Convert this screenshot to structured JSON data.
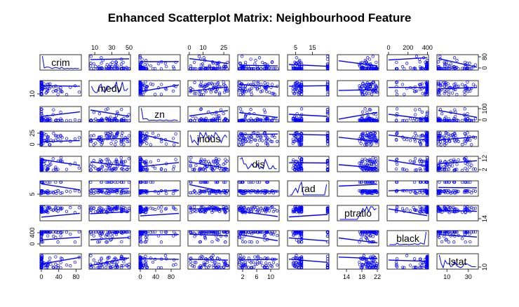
{
  "chart_data": {
    "type": "scatter",
    "title": "Enhanced Scatterplot Matrix: Neighbourhood Feature",
    "variables": [
      {
        "name": "crim",
        "ticks": [
          0,
          40,
          80
        ],
        "range": [
          0,
          89
        ]
      },
      {
        "name": "medv",
        "ticks": [
          10,
          30,
          50
        ],
        "range": [
          5,
          50
        ]
      },
      {
        "name": "zn",
        "ticks": [
          0,
          40,
          80
        ],
        "range": [
          0,
          100
        ]
      },
      {
        "name": "indus",
        "ticks": [
          0,
          10,
          25
        ],
        "range": [
          0,
          28
        ]
      },
      {
        "name": "dis",
        "ticks": [
          2,
          6,
          10
        ],
        "range": [
          1,
          12
        ]
      },
      {
        "name": "rad",
        "ticks": [
          5,
          15
        ],
        "range": [
          1,
          24
        ]
      },
      {
        "name": "ptratio",
        "ticks": [
          14,
          18,
          22
        ],
        "range": [
          12,
          22
        ]
      },
      {
        "name": "black",
        "ticks": [
          0,
          200,
          400
        ],
        "range": [
          0,
          397
        ]
      },
      {
        "name": "lstat",
        "ticks": [
          10,
          30
        ],
        "range": [
          2,
          38
        ]
      }
    ],
    "right_axis_ticks": [
      [
        "0",
        "80"
      ],
      [],
      [
        "0",
        "100"
      ],
      [],
      [
        "2",
        "12"
      ],
      [],
      [
        "14"
      ],
      [],
      [
        "10"
      ]
    ],
    "left_axis_ticks": [
      [],
      [
        "10"
      ],
      [],
      [
        "0",
        "25"
      ],
      [],
      [
        "5"
      ],
      [],
      [
        "0",
        "400"
      ],
      []
    ],
    "point_color": "#0000ff",
    "diagonal": "density",
    "grid": false,
    "legend": "none"
  }
}
